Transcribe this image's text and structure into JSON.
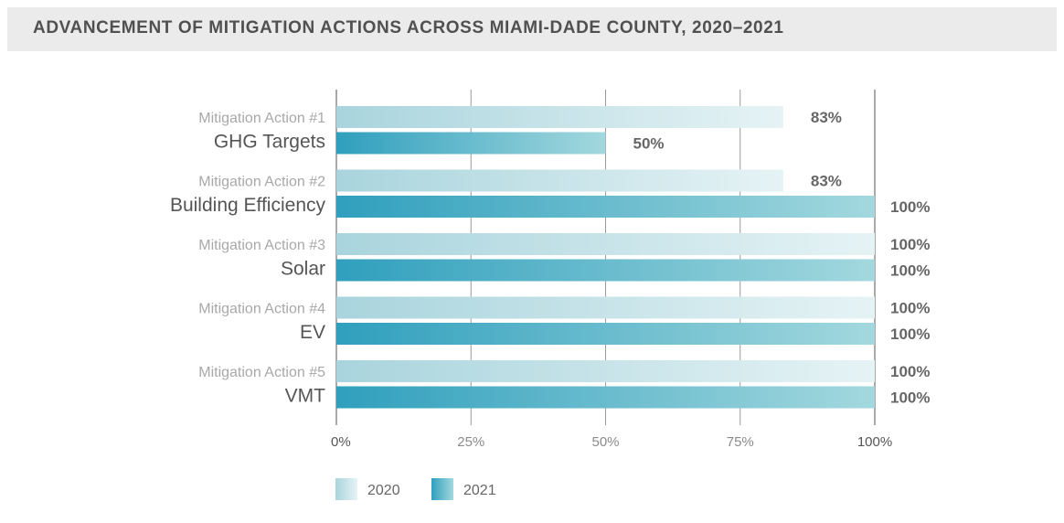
{
  "title": "ADVANCEMENT OF MITIGATION ACTIONS ACROSS MIAMI-DADE COUNTY, 2020–2021",
  "colors": {
    "light_start": "#a9d4dd",
    "light_end": "#e6f3f5",
    "dark_start": "#2f9fbd",
    "dark_end": "#a3d8de",
    "label_grey": "#a8a8a8",
    "label_dark": "#555555",
    "value_text": "#666666"
  },
  "chart_data": {
    "type": "bar",
    "orientation": "horizontal",
    "categories": [
      {
        "action": "Mitigation Action #1",
        "name": "GHG Targets"
      },
      {
        "action": "Mitigation Action #2",
        "name": "Building Efficiency"
      },
      {
        "action": "Mitigation Action #3",
        "name": "Solar"
      },
      {
        "action": "Mitigation Action #4",
        "name": "EV"
      },
      {
        "action": "Mitigation Action #5",
        "name": "VMT"
      }
    ],
    "series": [
      {
        "name": "2020",
        "values": [
          83,
          83,
          100,
          100,
          100
        ],
        "labels": [
          "83%",
          "83%",
          "100%",
          "100%",
          "100%"
        ]
      },
      {
        "name": "2021",
        "values": [
          50,
          100,
          100,
          100,
          100
        ],
        "labels": [
          "50%",
          "100%",
          "100%",
          "100%",
          "100%"
        ]
      }
    ],
    "xlim": [
      0,
      100
    ],
    "xticks": [
      "0%",
      "25%",
      "50%",
      "75%",
      "100%"
    ],
    "grid": true,
    "legend_position": "bottom-left"
  }
}
